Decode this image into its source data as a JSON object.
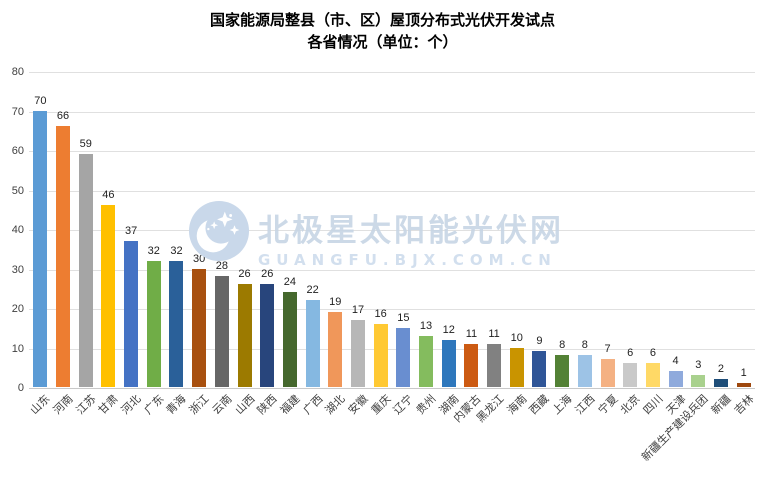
{
  "title": {
    "line1": "国家能源局整县（市、区）屋顶分布式光伏开发试点",
    "line2": "各省情况（单位：个）"
  },
  "watermark": {
    "brand": "北极星太阳能光伏网",
    "url": "GUANGFU.BJX.COM.CN",
    "logo": "crescent-stars-badge",
    "color": "#C7D5E5"
  },
  "chart_data": {
    "type": "bar",
    "title": "国家能源局整县（市、区）屋顶分布式光伏开发试点 各省情况（单位：个）",
    "xlabel": "",
    "ylabel": "",
    "ylim": [
      0,
      80
    ],
    "yticks": [
      0,
      10,
      20,
      30,
      40,
      50,
      60,
      70,
      80
    ],
    "grid": true,
    "legend": false,
    "data_labels": true,
    "categories": [
      "山东",
      "河南",
      "江苏",
      "甘肃",
      "河北",
      "广东",
      "青海",
      "浙江",
      "云南",
      "山西",
      "陕西",
      "福建",
      "广西",
      "湖北",
      "安徽",
      "重庆",
      "辽宁",
      "贵州",
      "湖南",
      "内蒙古",
      "黑龙江",
      "海南",
      "西藏",
      "上海",
      "江西",
      "宁夏",
      "北京",
      "四川",
      "天津",
      "新疆生产建设兵团",
      "新疆",
      "吉林"
    ],
    "values": [
      70,
      66,
      59,
      46,
      37,
      32,
      32,
      30,
      28,
      26,
      26,
      24,
      22,
      19,
      17,
      16,
      15,
      13,
      12,
      11,
      11,
      10,
      9,
      8,
      8,
      7,
      6,
      6,
      4,
      3,
      2,
      1
    ],
    "colors": [
      "#5B9BD5",
      "#ED7D31",
      "#A5A5A5",
      "#FFC000",
      "#4472C4",
      "#70AD47",
      "#2A6099",
      "#A8500F",
      "#666666",
      "#9C7A00",
      "#28457C",
      "#45682D",
      "#85B8E1",
      "#F0975A",
      "#B7B7B7",
      "#FFC933",
      "#698ED0",
      "#84BC5E",
      "#2E77BC",
      "#CC5A12",
      "#818181",
      "#C99400",
      "#2F5597",
      "#538135",
      "#9DC3E6",
      "#F4B183",
      "#C9C9C9",
      "#FFD966",
      "#8FAADC",
      "#A9D18E",
      "#1F4E79",
      "#9E480E"
    ]
  }
}
